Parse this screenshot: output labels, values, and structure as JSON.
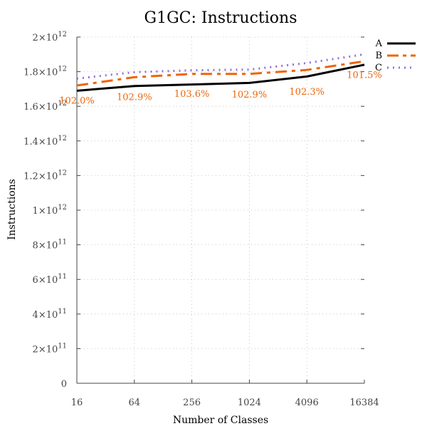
{
  "chart_data": {
    "type": "line",
    "title": "G1GC: Instructions",
    "xlabel": "Number of Classes",
    "ylabel": "Instructions",
    "x": [
      16,
      64,
      256,
      1024,
      4096,
      16384
    ],
    "x_scale": "log",
    "xlim": [
      16,
      16384
    ],
    "ylim": [
      0,
      2000000000000
    ],
    "y_ticks": [
      {
        "value": 0,
        "mantissa": "0",
        "exponent": ""
      },
      {
        "value": 200000000000,
        "mantissa": "2×10",
        "exponent": "11"
      },
      {
        "value": 400000000000,
        "mantissa": "4×10",
        "exponent": "11"
      },
      {
        "value": 600000000000,
        "mantissa": "6×10",
        "exponent": "11"
      },
      {
        "value": 800000000000,
        "mantissa": "8×10",
        "exponent": "11"
      },
      {
        "value": 1000000000000,
        "mantissa": "1×10",
        "exponent": "12"
      },
      {
        "value": 1200000000000,
        "mantissa": "1.2×10",
        "exponent": "12"
      },
      {
        "value": 1400000000000,
        "mantissa": "1.4×10",
        "exponent": "12"
      },
      {
        "value": 1600000000000,
        "mantissa": "1.6×10",
        "exponent": "12"
      },
      {
        "value": 1800000000000,
        "mantissa": "1.8×10",
        "exponent": "12"
      },
      {
        "value": 2000000000000,
        "mantissa": "2×10",
        "exponent": "12"
      }
    ],
    "x_tick_labels": [
      "16",
      "64",
      "256",
      "1024",
      "4096",
      "16384"
    ],
    "grid": true,
    "legend_position": "top-right",
    "series": [
      {
        "name": "A",
        "color": "#000000",
        "dash": "solid",
        "values": [
          1690000000000,
          1717000000000,
          1726000000000,
          1735000000000,
          1772000000000,
          1840000000000
        ]
      },
      {
        "name": "B",
        "color": "#ec6608",
        "dash": "dashed",
        "values": [
          1720000000000,
          1768000000000,
          1787000000000,
          1787000000000,
          1810000000000,
          1860000000000
        ]
      },
      {
        "name": "C",
        "color": "#9370db",
        "dash": "dotted",
        "values": [
          1760000000000,
          1797000000000,
          1808000000000,
          1812000000000,
          1850000000000,
          1900000000000
        ]
      }
    ],
    "annotations": [
      {
        "text": "102.0%",
        "x": 16,
        "y": 1632000000000
      },
      {
        "text": "102.9%",
        "x": 64,
        "y": 1652000000000
      },
      {
        "text": "103.6%",
        "x": 256,
        "y": 1671000000000
      },
      {
        "text": "102.9%",
        "x": 1024,
        "y": 1666000000000
      },
      {
        "text": "102.3%",
        "x": 4096,
        "y": 1683000000000
      },
      {
        "text": "101.5%",
        "x": 16384,
        "y": 1780000000000
      }
    ],
    "annotation_color": "#ec6608"
  }
}
